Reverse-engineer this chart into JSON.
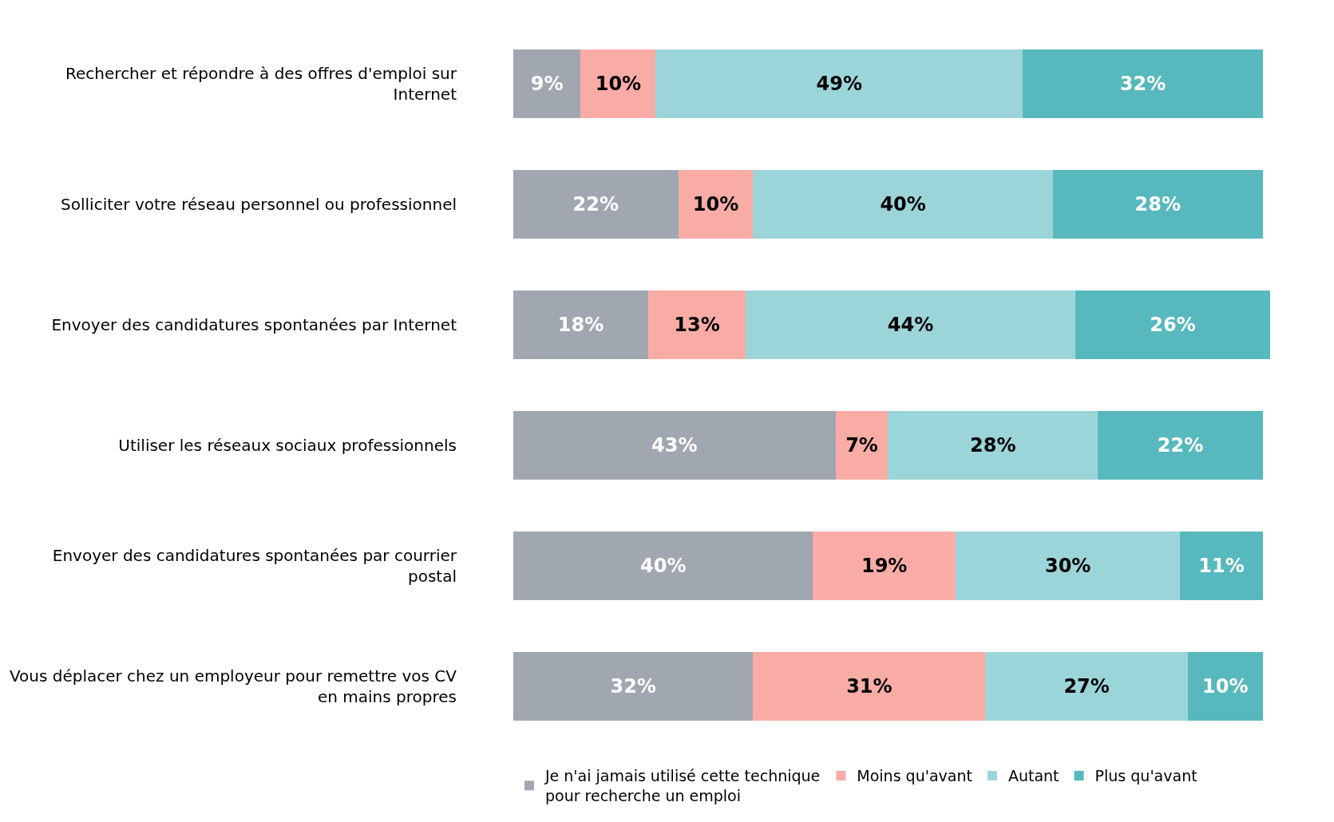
{
  "chart_data": {
    "type": "bar",
    "orientation": "horizontal",
    "stacked": true,
    "legend": "bottom",
    "tick_labels": "y",
    "categories": [
      "Rechercher et répondre à des offres d'emploi sur Internet",
      "Solliciter votre réseau personnel ou professionnel",
      "Envoyer des candidatures spontanées par Internet",
      "Utiliser les réseaux sociaux professionnels",
      "Envoyer des candidatures spontanées par courrier postal",
      "Vous déplacer chez un employeur pour remettre vos CV en mains propres"
    ],
    "series": [
      {
        "name": "Je n'ai jamais utilisé cette technique pour recherche un emploi",
        "color": "#a0a7b1",
        "values": [
          9,
          22,
          18,
          43,
          40,
          32
        ],
        "value_labels": [
          "9%",
          "22%",
          "18%",
          "43%",
          "40%",
          "32%"
        ]
      },
      {
        "name": "Moins qu'avant",
        "color": "#f9aca6",
        "values": [
          10,
          10,
          13,
          7,
          19,
          31
        ],
        "value_labels": [
          "10%",
          "10%",
          "13%",
          "7%",
          "19%",
          "31%"
        ]
      },
      {
        "name": "Autant",
        "color": "#9cd5d9",
        "values": [
          49,
          40,
          44,
          28,
          30,
          27
        ],
        "value_labels": [
          "49%",
          "40%",
          "44%",
          "28%",
          "30%",
          "27%"
        ]
      },
      {
        "name": "Plus qu'avant",
        "color": "#57b8bd",
        "values": [
          32,
          28,
          26,
          22,
          11,
          10
        ],
        "value_labels": [
          "32%",
          "28%",
          "26%",
          "22%",
          "11%",
          "10%"
        ]
      }
    ]
  }
}
